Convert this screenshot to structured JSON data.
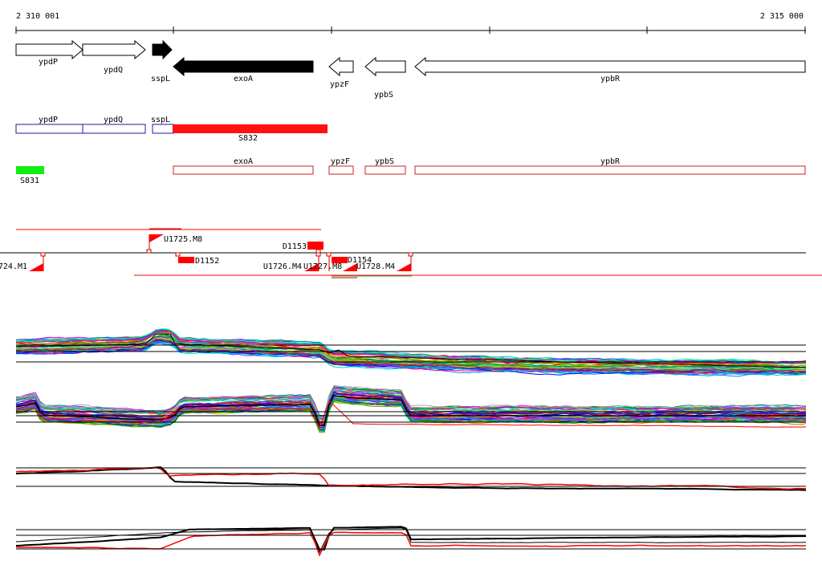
{
  "ruler": {
    "start_label": "2 310 001",
    "end_label": "2 315 000"
  },
  "genes": [
    {
      "name": "ypdP",
      "strand": "+",
      "highlight": false
    },
    {
      "name": "ypdQ",
      "strand": "+",
      "highlight": false
    },
    {
      "name": "sspL",
      "strand": "+",
      "highlight": true
    },
    {
      "name": "exoA",
      "strand": "-",
      "highlight": true
    },
    {
      "name": "ypzF",
      "strand": "-",
      "highlight": false
    },
    {
      "name": "ypbS",
      "strand": "-",
      "highlight": false
    },
    {
      "name": "ypbR",
      "strand": "-",
      "highlight": false
    }
  ],
  "plus_segments": {
    "labels": [
      "ypdP",
      "ypdQ",
      "sspL"
    ],
    "segment_label": "S832",
    "colors": {
      "box": "#1a1aaa",
      "segment": "#ff1111"
    }
  },
  "minus_segments": {
    "labels": [
      "exoA",
      "ypzF",
      "ypbS",
      "ypbR"
    ],
    "segment_label": "S831",
    "colors": {
      "box": "#cc2222",
      "segment": "#11ee11"
    }
  },
  "features": {
    "up": [
      {
        "label": "U1725.M8"
      },
      {
        "label": "D1153"
      }
    ],
    "down": [
      {
        "label": "724.M1"
      },
      {
        "label": "D1152"
      },
      {
        "label": "U1726.M4"
      },
      {
        "label": "U1727.M8"
      },
      {
        "label": "D1154"
      },
      {
        "label": "U1728.M4"
      }
    ]
  },
  "tracks": {
    "palette": [
      "#ff0000",
      "#0000ff",
      "#00aa00",
      "#ff00ff",
      "#00cccc",
      "#cccc00",
      "#ff8800",
      "#8800ff",
      "#008888",
      "#888800",
      "#0088ff",
      "#ff0088",
      "#00ff88",
      "#884400",
      "#4444ff",
      "#aaaaaa"
    ],
    "line_colors": {
      "primary": "#000000",
      "secondary": "#ff0000"
    }
  }
}
